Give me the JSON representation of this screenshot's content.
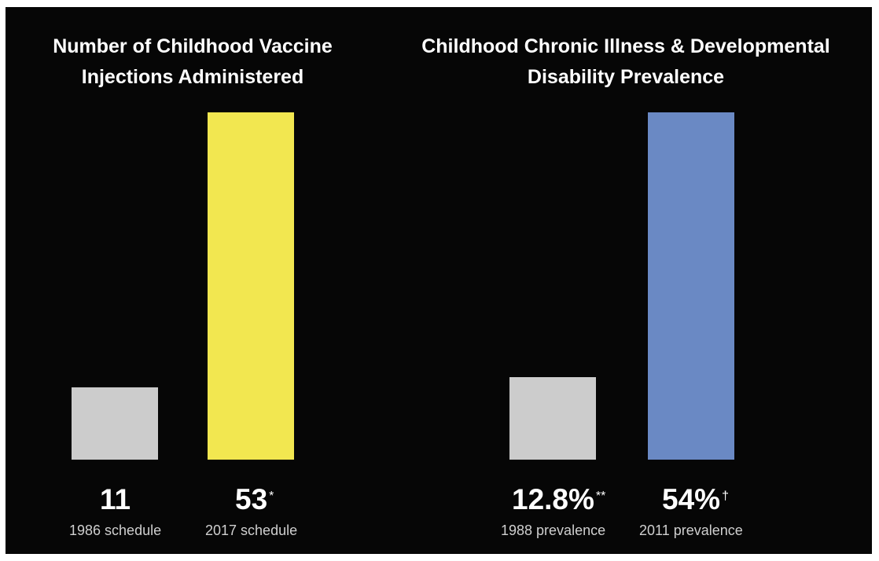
{
  "chart_data": [
    {
      "type": "bar",
      "title_lines": [
        "Number of Childhood Vaccine",
        "Injections Administered"
      ],
      "categories": [
        "1986 schedule",
        "2017 schedule"
      ],
      "values": [
        11,
        53
      ],
      "value_labels": [
        "11",
        "53"
      ],
      "footnote_marks": [
        "",
        "*"
      ],
      "colors": [
        "#cccccc",
        "#f2e750"
      ],
      "ylim": [
        0,
        53
      ],
      "axes": "none",
      "grid": false
    },
    {
      "type": "bar",
      "title_lines": [
        "Childhood Chronic Illness & Developmental",
        "Disability Prevalence"
      ],
      "categories": [
        "1988 prevalence",
        "2011 prevalence"
      ],
      "values": [
        12.8,
        54
      ],
      "value_labels": [
        "12.8%",
        "54%"
      ],
      "footnote_marks": [
        "**",
        "†"
      ],
      "colors": [
        "#cccccc",
        "#6a89c4"
      ],
      "ylim": [
        0,
        54
      ],
      "axes": "none",
      "grid": false
    }
  ]
}
